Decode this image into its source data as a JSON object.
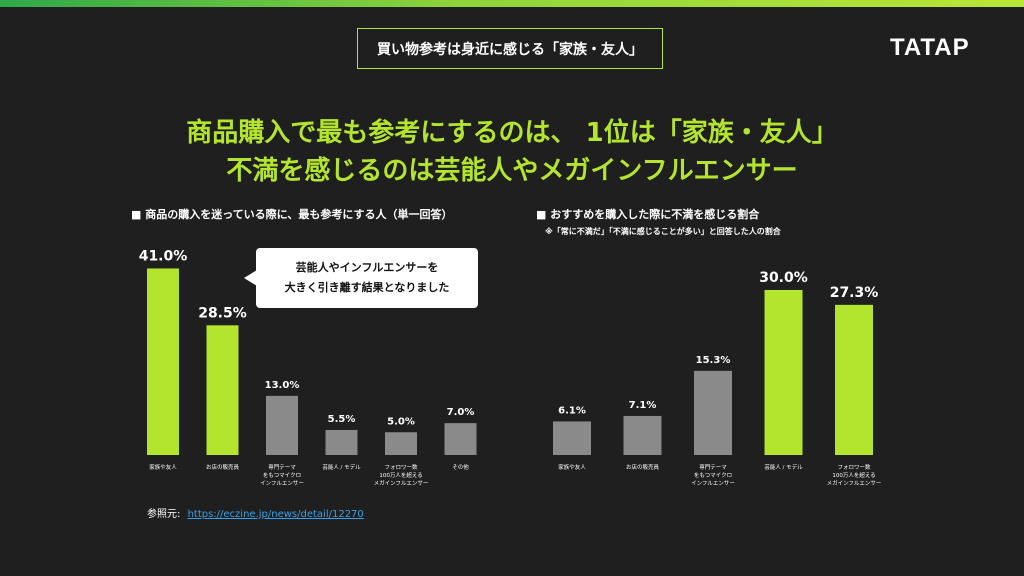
{
  "tag": "買い物参考は身近に感じる「家族・友人」",
  "logo": "TATAP",
  "headline": {
    "line1": "商品購入で最も参考にするのは、 1位は「家族・友人」",
    "line2": "不満を感じるのは芸能人やメガインフルエンサー"
  },
  "callout": {
    "line1": "芸能人やインフルエンサーを",
    "line2": "大きく引き離す結果となりました"
  },
  "source": {
    "label": "参照元:",
    "link": "https://eczine.jp/news/detail/12270"
  },
  "colors": {
    "accent": "#b3e52f",
    "neutral": "#8a8a8a",
    "background": "#1f1f1f"
  },
  "chart_data": [
    {
      "type": "bar",
      "title": "■ 商品の購入を迷っている際に、最も参考にする人（単一回答）",
      "note": "",
      "categories": [
        [
          "家族や友人"
        ],
        [
          "お店の販売員"
        ],
        [
          "専門テーマ",
          "をもつマイクロ",
          "インフルエンサー"
        ],
        [
          "芸能人 / モデル"
        ],
        [
          "フォロワー数",
          "100万人を超える",
          "メガインフルエンサー"
        ],
        [
          "その他"
        ]
      ],
      "values": [
        41.0,
        28.5,
        13.0,
        5.5,
        5.0,
        7.0
      ],
      "value_labels": [
        "41.0%",
        "28.5%",
        "13.0%",
        "5.5%",
        "5.0%",
        "7.0%"
      ],
      "highlight": [
        true,
        true,
        false,
        false,
        false,
        false
      ],
      "unit": "%"
    },
    {
      "type": "bar",
      "title": "■ おすすめを購入した際に不満を感じる割合",
      "note": "※「常に不満だ」「不満に感じることが多い」と回答した人の割合",
      "categories": [
        [
          "家族や友人"
        ],
        [
          "お店の販売員"
        ],
        [
          "専門テーマ",
          "をもつマイクロ",
          "インフルエンサー"
        ],
        [
          "芸能人 / モデル"
        ],
        [
          "フォロワー数",
          "100万人を超える",
          "メガインフルエンサー"
        ]
      ],
      "values": [
        6.1,
        7.1,
        15.3,
        30.0,
        27.3
      ],
      "value_labels": [
        "6.1%",
        "7.1%",
        "15.3%",
        "30.0%",
        "27.3%"
      ],
      "highlight": [
        false,
        false,
        false,
        true,
        true
      ],
      "unit": "%"
    }
  ]
}
